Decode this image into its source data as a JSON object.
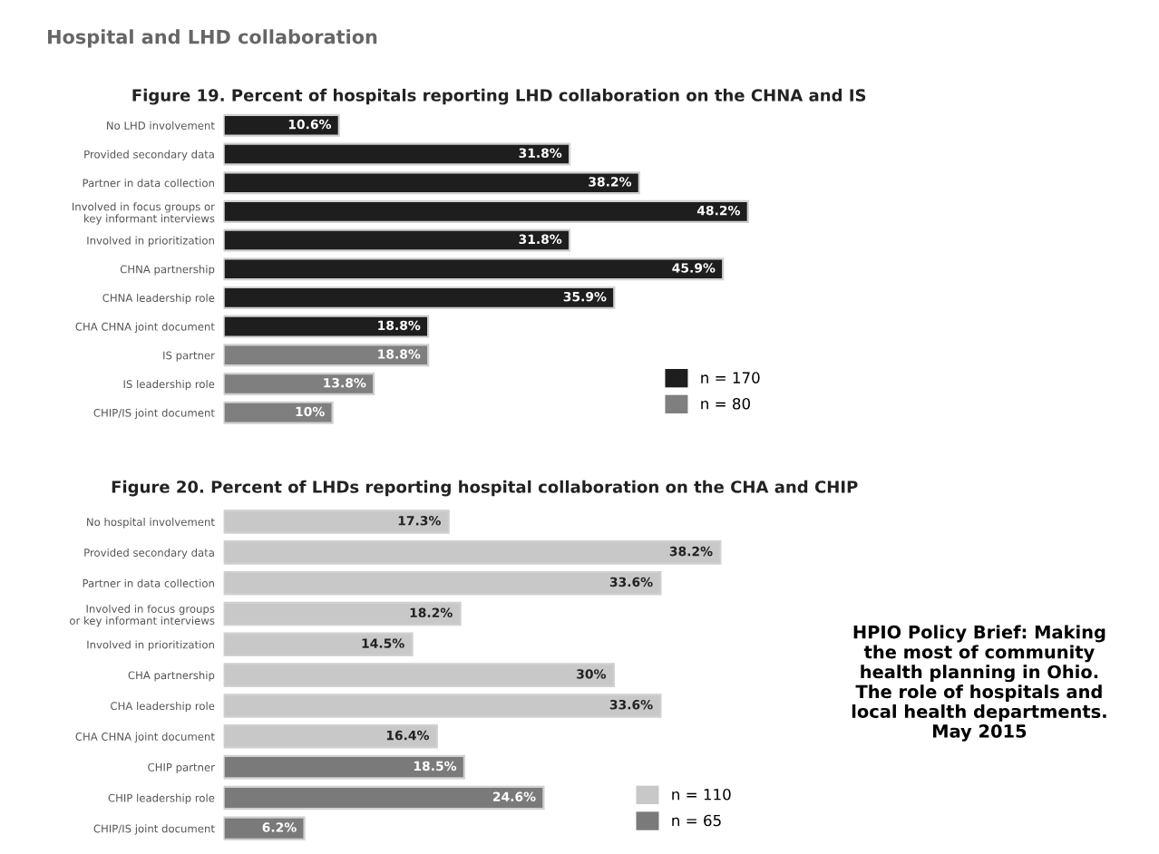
{
  "chart_data": [
    {
      "type": "bar",
      "orientation": "horizontal",
      "title": "Hospital and LHD collaboration",
      "subtitle": "Figure 19. Percent of hospitals reporting LHD collaboration on the CHNA and IS",
      "categories": [
        "No LHD involvement",
        "Provided secondary data",
        "Partner in data collection",
        "Involved in focus groups or\nkey informant interviews",
        "Involved in prioritization",
        "CHNA partnership",
        "CHNA leadership role",
        "CHA CHNA joint document",
        "IS partner",
        "IS leadership role",
        "CHIP/IS joint document"
      ],
      "series": [
        {
          "name": "n = 170",
          "color": "#1e1e1e",
          "values": [
            10.6,
            31.8,
            38.2,
            48.2,
            31.8,
            45.9,
            35.9,
            18.8,
            null,
            null,
            null
          ],
          "value_labels": [
            "10.6%",
            "31.8%",
            "38.2%",
            "48.2%",
            "31.8%",
            "45.9%",
            "35.9%",
            "18.8%",
            null,
            null,
            null
          ]
        },
        {
          "name": "n = 80",
          "color": "#7f7f7f",
          "values": [
            null,
            null,
            null,
            null,
            null,
            null,
            null,
            null,
            18.8,
            13.8,
            10
          ],
          "value_labels": [
            null,
            null,
            null,
            null,
            null,
            null,
            null,
            null,
            "18.8%",
            "13.8%",
            "10%"
          ]
        }
      ],
      "tick_labels": "y",
      "legend": "bottom right"
    },
    {
      "type": "bar",
      "orientation": "horizontal",
      "subtitle": "Figure 20. Percent of LHDs reporting hospital collaboration on the CHA and CHIP",
      "categories": [
        "No hospital involvement",
        "Provided secondary data",
        "Partner in data collection",
        "Involved in focus groups\nor key informant interviews",
        "Involved in prioritization",
        "CHA partnership",
        "CHA leadership role",
        "CHA CHNA joint document",
        "CHIP partner",
        "CHIP leadership role",
        "CHIP/IS joint document"
      ],
      "series": [
        {
          "name": "n = 110",
          "color": "#c8c8c8",
          "values": [
            17.3,
            38.2,
            33.6,
            18.2,
            14.5,
            30,
            33.6,
            16.4,
            null,
            null,
            null
          ],
          "value_labels": [
            "17.3%",
            "38.2%",
            "33.6%",
            "18.2%",
            "14.5%",
            "30%",
            "33.6%",
            "16.4%",
            null,
            null,
            null
          ]
        },
        {
          "name": "n = 65",
          "color": "#7a7a7a",
          "values": [
            null,
            null,
            null,
            null,
            null,
            null,
            null,
            null,
            18.5,
            24.6,
            6.2
          ],
          "value_labels": [
            null,
            null,
            null,
            null,
            null,
            null,
            null,
            null,
            "18.5%",
            "24.6%",
            "6.2%"
          ]
        }
      ],
      "tick_labels": "y",
      "legend": "bottom right",
      "annotations": [
        "HPIO Policy Brief: Making\nthe most of community\nhealth planning in Ohio.\nThe role of hospitals and\nlocal health departments.\nMay 2015"
      ]
    }
  ]
}
